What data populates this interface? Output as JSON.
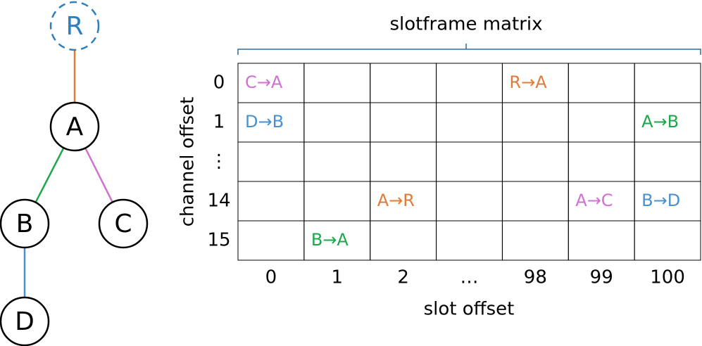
{
  "tree": {
    "nodes": [
      {
        "label": "R",
        "color": "#2f7fbf",
        "dashed": true
      },
      {
        "label": "A",
        "color": "#000000"
      },
      {
        "label": "B",
        "color": "#000000"
      },
      {
        "label": "C",
        "color": "#000000"
      },
      {
        "label": "D",
        "color": "#000000"
      }
    ],
    "edges": [
      {
        "from": 0,
        "to": 1,
        "color": "#e07b39"
      },
      {
        "from": 1,
        "to": 2,
        "color": "#1aa84a"
      },
      {
        "from": 1,
        "to": 3,
        "color": "#d070d0"
      },
      {
        "from": 2,
        "to": 4,
        "color": "#4a90d0"
      }
    ]
  },
  "matrix": {
    "title": "slotframe matrix",
    "x_label": "slot offset",
    "y_label": "channel offset",
    "columns": [
      "0",
      "1",
      "2",
      "…",
      "98",
      "99",
      "100"
    ],
    "rows": [
      "0",
      "1",
      "⋮",
      "14",
      "15"
    ],
    "cells": [
      [
        {
          "label": "C→A",
          "color": "#d070d0"
        },
        null,
        null,
        null,
        {
          "label": "R→A",
          "color": "#e07b39"
        },
        null,
        null
      ],
      [
        {
          "label": "D→B",
          "color": "#4a90d0"
        },
        null,
        null,
        null,
        null,
        null,
        {
          "label": "A→B",
          "color": "#1aa84a"
        }
      ],
      [
        null,
        null,
        null,
        null,
        null,
        null,
        null
      ],
      [
        null,
        null,
        {
          "label": "A→R",
          "color": "#e07b39"
        },
        null,
        null,
        {
          "label": "A→C",
          "color": "#d070d0"
        },
        {
          "label": "B→D",
          "color": "#4a90d0"
        }
      ],
      [
        null,
        {
          "label": "B→A",
          "color": "#1aa84a"
        },
        null,
        null,
        null,
        null,
        null
      ]
    ]
  }
}
